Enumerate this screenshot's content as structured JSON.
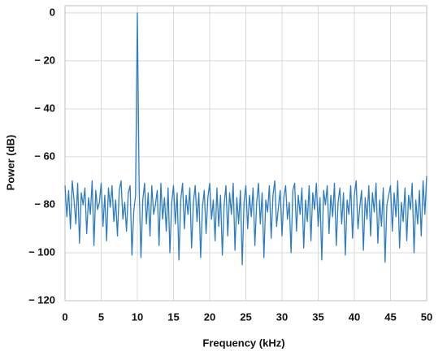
{
  "chart_data": {
    "type": "line",
    "x_label": "Frequency (kHz)",
    "y_label": "Power (dB)",
    "color": "#2b7cc4",
    "grid": true,
    "xlim": [
      0,
      50
    ],
    "xticks": [
      0,
      5,
      10,
      15,
      20,
      25,
      30,
      35,
      40,
      45,
      50
    ],
    "ylim": [
      -120,
      3
    ],
    "yticks": [
      0,
      {
        "value": -20,
        "label": "− 20"
      },
      {
        "value": -40,
        "label": "− 40"
      },
      {
        "value": -60,
        "label": "− 60"
      },
      {
        "value": -80,
        "label": "− 80"
      },
      {
        "value": -100,
        "label": "− 100"
      },
      {
        "value": -120,
        "label": "− 120"
      }
    ],
    "x": [
      0,
      0.25,
      0.5,
      0.75,
      1,
      1.25,
      1.5,
      1.75,
      2,
      2.25,
      2.5,
      2.75,
      3,
      3.25,
      3.5,
      3.75,
      4,
      4.25,
      4.5,
      4.75,
      5,
      5.25,
      5.5,
      5.75,
      6,
      6.25,
      6.5,
      6.75,
      7,
      7.25,
      7.5,
      7.75,
      8,
      8.25,
      8.5,
      8.75,
      9,
      9.25,
      9.5,
      9.75,
      10,
      10.25,
      10.5,
      10.75,
      11,
      11.25,
      11.5,
      11.75,
      12,
      12.25,
      12.5,
      12.75,
      13,
      13.25,
      13.5,
      13.75,
      14,
      14.25,
      14.5,
      14.75,
      15,
      15.25,
      15.5,
      15.75,
      16,
      16.25,
      16.5,
      16.75,
      17,
      17.25,
      17.5,
      17.75,
      18,
      18.25,
      18.5,
      18.75,
      19,
      19.25,
      19.5,
      19.75,
      20,
      20.25,
      20.5,
      20.75,
      21,
      21.25,
      21.5,
      21.75,
      22,
      22.25,
      22.5,
      22.75,
      23,
      23.25,
      23.5,
      23.75,
      24,
      24.25,
      24.5,
      24.75,
      25,
      25.25,
      25.5,
      25.75,
      26,
      26.25,
      26.5,
      26.75,
      27,
      27.25,
      27.5,
      27.75,
      28,
      28.25,
      28.5,
      28.75,
      29,
      29.25,
      29.5,
      29.75,
      30,
      30.25,
      30.5,
      30.75,
      31,
      31.25,
      31.5,
      31.75,
      32,
      32.25,
      32.5,
      32.75,
      33,
      33.25,
      33.5,
      33.75,
      34,
      34.25,
      34.5,
      34.75,
      35,
      35.25,
      35.5,
      35.75,
      36,
      36.25,
      36.5,
      36.75,
      37,
      37.25,
      37.5,
      37.75,
      38,
      38.25,
      38.5,
      38.75,
      39,
      39.25,
      39.5,
      39.75,
      40,
      40.25,
      40.5,
      40.75,
      41,
      41.25,
      41.5,
      41.75,
      42,
      42.25,
      42.5,
      42.75,
      43,
      43.25,
      43.5,
      43.75,
      44,
      44.25,
      44.5,
      44.75,
      45,
      45.25,
      45.5,
      45.75,
      46,
      46.25,
      46.5,
      46.75,
      47,
      47.25,
      47.5,
      47.75,
      48,
      48.25,
      48.5,
      48.75,
      49,
      49.25,
      49.5,
      49.75,
      50
    ],
    "values": [
      -72,
      -85,
      -74,
      -90,
      -70,
      -78,
      -88,
      -71,
      -96,
      -75,
      -80,
      -73,
      -92,
      -77,
      -84,
      -70,
      -97,
      -74,
      -82,
      -79,
      -71,
      -89,
      -76,
      -95,
      -73,
      -81,
      -72,
      -87,
      -78,
      -93,
      -74,
      -70,
      -86,
      -79,
      -91,
      -75,
      -72,
      -101,
      -83,
      -76,
      0,
      -73,
      -102,
      -78,
      -71,
      -88,
      -75,
      -93,
      -72,
      -84,
      -80,
      -74,
      -97,
      -71,
      -86,
      -77,
      -91,
      -73,
      -100,
      -79,
      -72,
      -88,
      -75,
      -103,
      -78,
      -71,
      -90,
      -76,
      -84,
      -73,
      -98,
      -79,
      -72,
      -87,
      -75,
      -102,
      -81,
      -74,
      -92,
      -77,
      -71,
      -86,
      -78,
      -95,
      -73,
      -89,
      -76,
      -101,
      -80,
      -72,
      -93,
      -75,
      -84,
      -71,
      -99,
      -77,
      -88,
      -74,
      -105,
      -79,
      -72,
      -90,
      -76,
      -85,
      -73,
      -97,
      -79,
      -71,
      -88,
      -75,
      -102,
      -78,
      -83,
      -72,
      -94,
      -76,
      -70,
      -89,
      -81,
      -74,
      -93,
      -77,
      -72,
      -86,
      -79,
      -100,
      -74,
      -71,
      -91,
      -76,
      -84,
      -73,
      -98,
      -78,
      -87,
      -72,
      -95,
      -75,
      -82,
      -71,
      -89,
      -77,
      -103,
      -74,
      -80,
      -72,
      -92,
      -76,
      -85,
      -71,
      -97,
      -79,
      -73,
      -88,
      -75,
      -101,
      -78,
      -84,
      -72,
      -94,
      -76,
      -70,
      -90,
      -81,
      -74,
      -99,
      -77,
      -86,
      -72,
      -93,
      -75,
      -83,
      -71,
      -96,
      -78,
      -89,
      -73,
      -104,
      -80,
      -76,
      -72,
      -91,
      -75,
      -85,
      -70,
      -98,
      -79,
      -87,
      -73,
      -95,
      -76,
      -82,
      -71,
      -100,
      -78,
      -88,
      -74,
      -93,
      -70,
      -84,
      -68
    ]
  }
}
